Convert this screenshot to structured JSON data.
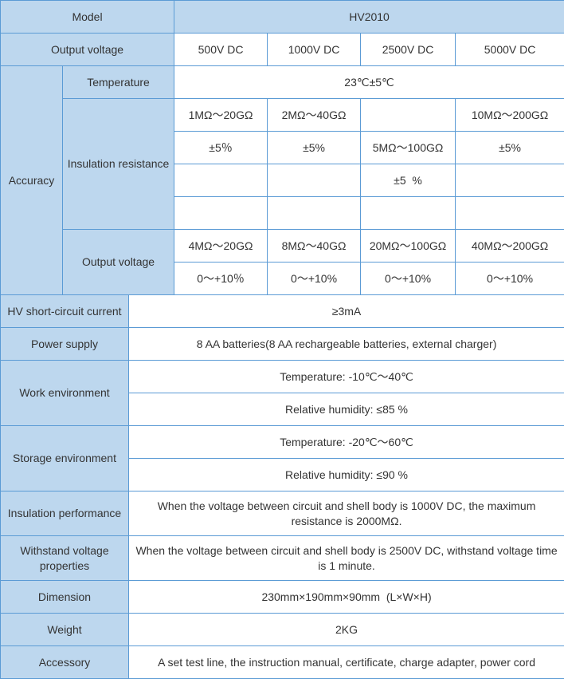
{
  "colors": {
    "header_bg": "#bdd7ee",
    "border": "#5b9bd5",
    "text": "#333333"
  },
  "model": {
    "label": "Model",
    "value": "HV2010"
  },
  "output_voltage": {
    "label": "Output voltage",
    "values": [
      "500V DC",
      "1000V DC",
      "2500V DC",
      "5000V DC"
    ]
  },
  "accuracy": {
    "label": "Accuracy",
    "temperature": {
      "label": "Temperature",
      "value": "23℃±5℃"
    },
    "insulation_resistance": {
      "label": "Insulation resistance",
      "rows": [
        [
          "1MΩ～20GΩ",
          "2MΩ～40GΩ",
          "",
          "10MΩ～200GΩ"
        ],
        [
          "±5％",
          "±5%",
          "5MΩ～100GΩ",
          "±5%"
        ],
        [
          "",
          "",
          "±5  %",
          ""
        ],
        [
          "",
          "",
          "",
          ""
        ]
      ]
    },
    "output_voltage": {
      "label": "Output voltage",
      "rows": [
        [
          "4MΩ～20GΩ",
          "8MΩ～40GΩ",
          "20MΩ～100GΩ",
          "40MΩ～200GΩ"
        ],
        [
          "0～+10％",
          "0～+10%",
          "0～+10%",
          "0～+10%"
        ]
      ]
    }
  },
  "short_circuit": {
    "label": "HV short-circuit current",
    "value": "≥3mA"
  },
  "power_supply": {
    "label": "Power supply",
    "value": "8 AA batteries(8 AA rechargeable batteries, external charger)"
  },
  "work_environment": {
    "label": "Work environment",
    "temperature": "Temperature: -10℃～40℃",
    "humidity": "Relative humidity: ≤85 %"
  },
  "storage_environment": {
    "label": "Storage environment",
    "temperature": "Temperature: -20℃～60℃",
    "humidity": "Relative humidity: ≤90 %"
  },
  "insulation_performance": {
    "label": "Insulation performance",
    "value": "When the voltage between circuit and shell body is 1000V DC, the maximum resistance is 2000MΩ."
  },
  "withstand_voltage": {
    "label": "Withstand voltage properties",
    "value": "When the voltage between circuit and shell body is 2500V DC, withstand voltage time is 1 minute."
  },
  "dimension": {
    "label": "Dimension",
    "value": "230mm×190mm×90mm  (L×W×H)"
  },
  "weight": {
    "label": "Weight",
    "value": "2KG"
  },
  "accessory": {
    "label": "Accessory",
    "value": "A set test line, the instruction manual, certificate, charge adapter, power cord"
  }
}
